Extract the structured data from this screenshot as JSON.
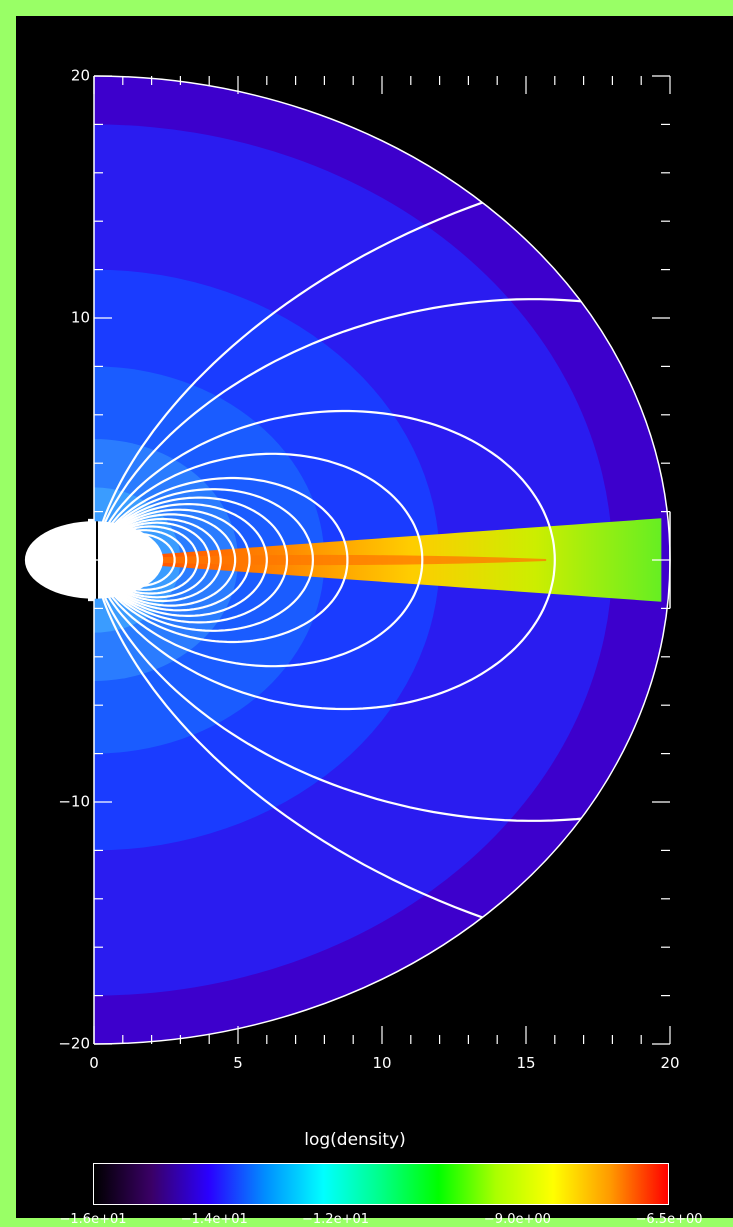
{
  "chart_data": {
    "type": "heatmap",
    "x": [
      0,
      20
    ],
    "y": [
      -20,
      20
    ],
    "xlim": [
      0,
      20
    ],
    "ylim": [
      -20,
      20
    ],
    "xticks": [
      0,
      5,
      10,
      15,
      20
    ],
    "yticks": [
      -20,
      -10,
      0,
      10,
      20
    ],
    "xtick_labels": [
      "0",
      "5",
      "10",
      "15",
      "20"
    ],
    "ytick_labels": [
      "−20",
      "−10",
      "0",
      "10",
      "20"
    ],
    "values": "log(density)",
    "domain_shape": "half-disk radius 20 centred at origin",
    "density_shells": [
      {
        "r_outer": 20,
        "color": "#3d00cc"
      },
      {
        "r_outer": 18,
        "color": "#2a1cf0"
      },
      {
        "r_outer": 12,
        "color": "#1a3cff"
      },
      {
        "r_outer": 8,
        "color": "#1a5cff"
      },
      {
        "r_outer": 5,
        "color": "#2a7cff"
      },
      {
        "r_outer": 3,
        "color": "#3a9cff"
      }
    ],
    "disk_colors": [
      "#66ee22",
      "#ccee00",
      "#ffcc00",
      "#ff8800",
      "#ff5500"
    ],
    "field_line_apex_x": [
      2.8,
      3.2,
      3.6,
      4.0,
      4.4,
      4.9,
      5.4,
      6.0,
      6.7,
      7.6,
      8.8,
      11.4,
      16.0,
      28.0,
      44.0
    ],
    "colorbar": {
      "title": "log(density)",
      "min": -16,
      "max": -6.5,
      "tick_labels": [
        "−1.6e+01",
        "−1.4e+01",
        "−1.2e+01",
        "−9.0e+00",
        "−6.5e+00"
      ],
      "tick_values": [
        -16,
        -14,
        -12,
        -9,
        -6.5
      ],
      "colormap": [
        "#000000",
        "#3a0066",
        "#2a00ff",
        "#0090ff",
        "#00ffff",
        "#00ff88",
        "#00ff00",
        "#aaff00",
        "#ffff00",
        "#ff9900",
        "#ff0000"
      ]
    }
  }
}
